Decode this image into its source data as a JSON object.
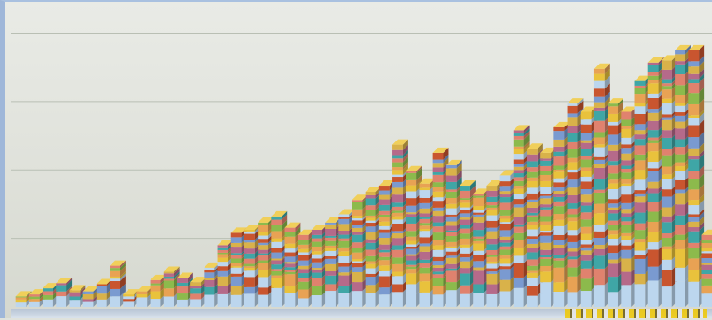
{
  "chart_data": {
    "type": "bar",
    "stacked": true,
    "view": "3d",
    "title": "",
    "xlabel": "",
    "ylabel": "",
    "grid": true,
    "legend": "none",
    "ylim": [
      0,
      280
    ],
    "layers": 30,
    "palette": [
      "#bcd6ee",
      "#e9c23c",
      "#e8a254",
      "#8cba4c",
      "#e0826e",
      "#3fa6a6",
      "#b56a8a",
      "#d9b24a",
      "#7a9ad0",
      "#c9552f"
    ],
    "totals": [
      10,
      12,
      18,
      23,
      16,
      15,
      22,
      40,
      12,
      15,
      26,
      34,
      28,
      24,
      38,
      60,
      72,
      75,
      82,
      88,
      77,
      70,
      75,
      82,
      90,
      104,
      112,
      118,
      158,
      132,
      120,
      150,
      138,
      118,
      110,
      118,
      128,
      172,
      154,
      150,
      175,
      198,
      190,
      232,
      198,
      190,
      220,
      238,
      240,
      250,
      250,
      70
    ]
  },
  "decor": {
    "corner_logo": "corner-logo"
  }
}
